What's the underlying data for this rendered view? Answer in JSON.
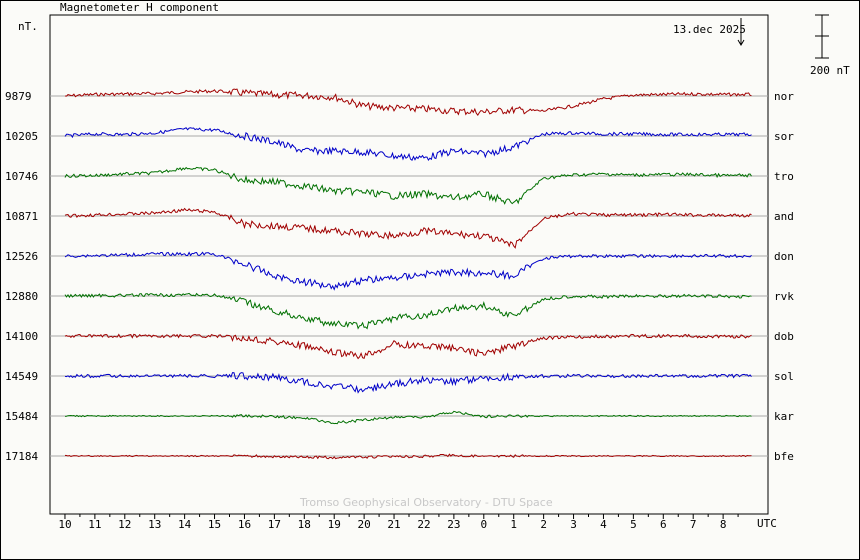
{
  "chart_data": {
    "type": "line",
    "title": "Magnetometer H component",
    "ylabel": "nT.",
    "xlabel": "UTC",
    "date_label": "13.dec 2025",
    "scale_bar_label": "200 nT",
    "credit": "Tromso Geophysical Observatory - DTU Space",
    "x_tick_labels": [
      "10",
      "11",
      "12",
      "13",
      "14",
      "15",
      "16",
      "17",
      "18",
      "19",
      "20",
      "21",
      "22",
      "23",
      "0",
      "1",
      "2",
      "3",
      "4",
      "5",
      "6",
      "7",
      "8"
    ],
    "x_hours_since_start": [
      0.5,
      1.5,
      2.5,
      3.5,
      4.5,
      5.5,
      6.5,
      7.5,
      8.5,
      9.5,
      10.5,
      11.5,
      12.5,
      13.5,
      14.5,
      15.5,
      16.5,
      17.5,
      18.5,
      19.5,
      20.5,
      21.5,
      22.5
    ],
    "x_range_hours": [
      0,
      24
    ],
    "colors": {
      "red": "#a00000",
      "blue": "#0000c8",
      "green": "#007000"
    },
    "series": [
      {
        "name": "nor",
        "baseline_nT": "9879",
        "color": "red",
        "values": [
          0,
          15,
          20,
          25,
          40,
          50,
          30,
          10,
          5,
          -10,
          -100,
          -120,
          -130,
          -150,
          -160,
          -140,
          -150,
          -100,
          -30,
          10,
          15,
          20,
          15
        ]
      },
      {
        "name": "sor",
        "baseline_nT": "10205",
        "color": "blue",
        "values": [
          0,
          20,
          15,
          30,
          70,
          60,
          0,
          -60,
          -150,
          -150,
          -160,
          -200,
          -220,
          -150,
          -180,
          -110,
          20,
          30,
          20,
          20,
          15,
          15,
          15
        ]
      },
      {
        "name": "tro",
        "baseline_nT": "10746",
        "color": "green",
        "values": [
          0,
          5,
          20,
          30,
          80,
          60,
          -40,
          -60,
          -100,
          -150,
          -160,
          -200,
          -180,
          -220,
          -180,
          -280,
          -20,
          10,
          20,
          10,
          15,
          15,
          5
        ]
      },
      {
        "name": "and",
        "baseline_nT": "10871",
        "color": "red",
        "values": [
          0,
          10,
          20,
          30,
          60,
          40,
          -80,
          -100,
          -120,
          -150,
          -180,
          -200,
          -150,
          -180,
          -200,
          -300,
          -20,
          20,
          10,
          10,
          15,
          10,
          5
        ]
      },
      {
        "name": "don",
        "baseline_nT": "12526",
        "color": "blue",
        "values": [
          0,
          5,
          10,
          20,
          20,
          20,
          -80,
          -200,
          -260,
          -300,
          -240,
          -220,
          -180,
          -160,
          -170,
          -200,
          -20,
          0,
          0,
          0,
          0,
          0,
          0
        ]
      },
      {
        "name": "rvk",
        "baseline_nT": "12880",
        "color": "green",
        "values": [
          0,
          5,
          5,
          10,
          10,
          10,
          -60,
          -150,
          -220,
          -280,
          -300,
          -220,
          -200,
          -120,
          -100,
          -200,
          -30,
          0,
          -10,
          0,
          0,
          0,
          -5
        ]
      },
      {
        "name": "dob",
        "baseline_nT": "14100",
        "color": "red",
        "values": [
          0,
          0,
          0,
          0,
          0,
          0,
          -20,
          -50,
          -100,
          -170,
          -200,
          -80,
          -100,
          -120,
          -180,
          -100,
          -20,
          -10,
          -5,
          0,
          0,
          0,
          -5
        ]
      },
      {
        "name": "sol",
        "baseline_nT": "14549",
        "color": "blue",
        "values": [
          0,
          0,
          0,
          0,
          0,
          0,
          0,
          -10,
          -60,
          -100,
          -140,
          -80,
          -40,
          -50,
          -20,
          -10,
          0,
          0,
          0,
          0,
          0,
          0,
          0
        ]
      },
      {
        "name": "kar",
        "baseline_nT": "15484",
        "color": "green",
        "values": [
          0,
          0,
          0,
          0,
          0,
          0,
          0,
          -5,
          -20,
          -70,
          -40,
          -10,
          -15,
          40,
          -5,
          0,
          0,
          0,
          0,
          0,
          0,
          0,
          0
        ]
      },
      {
        "name": "bfe",
        "baseline_nT": "17184",
        "color": "red",
        "values": [
          0,
          0,
          0,
          0,
          0,
          0,
          0,
          -5,
          -10,
          -15,
          -10,
          -5,
          -5,
          10,
          -5,
          0,
          0,
          0,
          0,
          0,
          0,
          0,
          0
        ]
      }
    ]
  }
}
